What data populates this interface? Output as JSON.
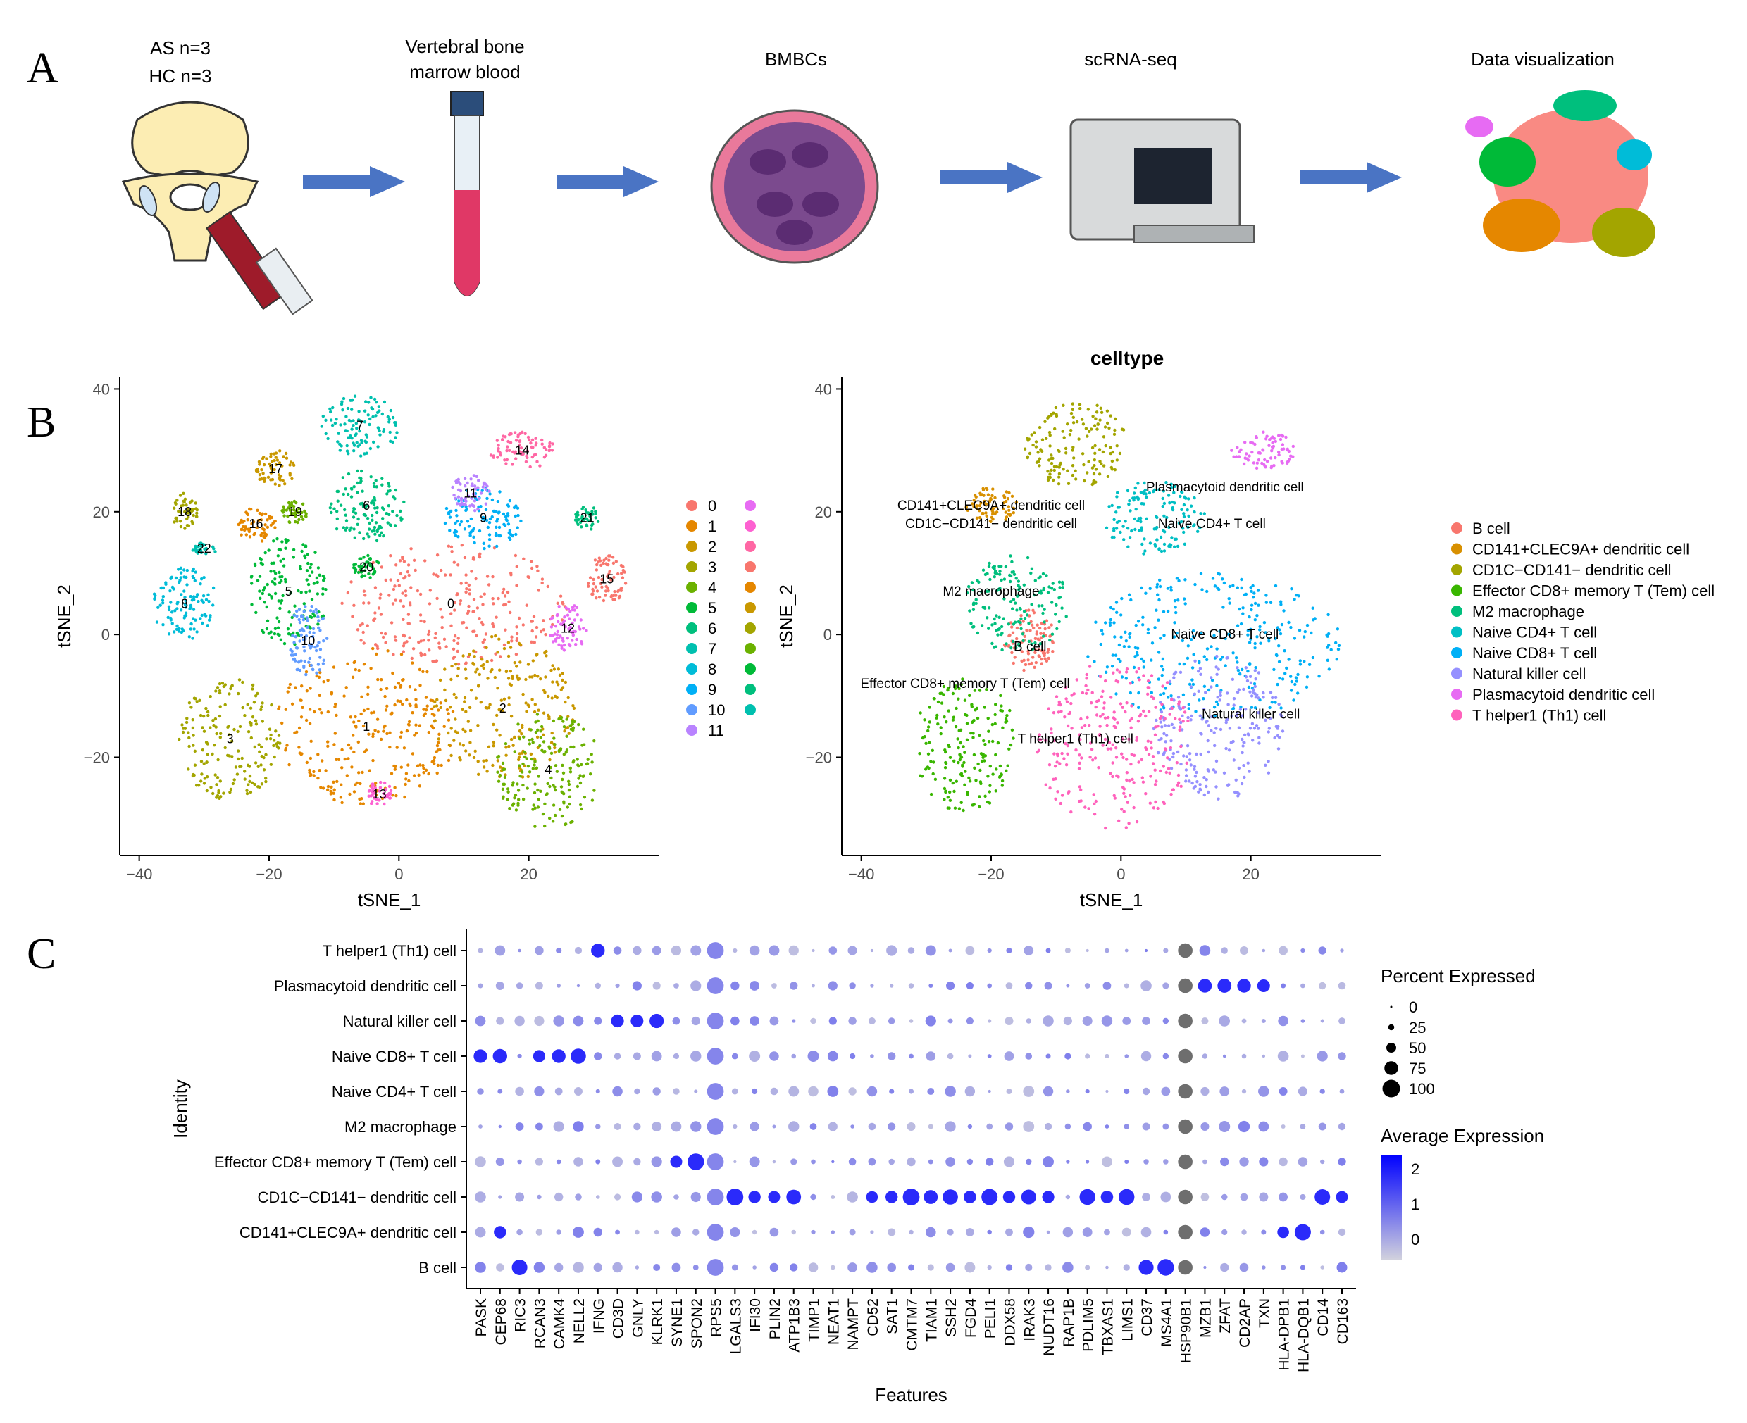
{
  "panels": {
    "A": "A",
    "B": "B",
    "C": "C"
  },
  "workflow": {
    "subjects": [
      "AS n=3",
      "HC n=3"
    ],
    "stages": [
      {
        "label_lines": [
          "Vertebral bone",
          "marrow blood"
        ]
      },
      {
        "label_lines": [
          "BMBCs"
        ]
      },
      {
        "label_lines": [
          "scRNA-seq"
        ]
      },
      {
        "label_lines": [
          "Data visualization"
        ]
      }
    ]
  },
  "colors": {
    "cluster_palette": [
      "#F8766D",
      "#E58700",
      "#C99800",
      "#A3A500",
      "#6BB100",
      "#00BA38",
      "#00BF7D",
      "#00C0AF",
      "#00BCD8",
      "#00B0F6",
      "#619CFF",
      "#B983FF",
      "#E76BF3",
      "#FD61D1",
      "#FF67A4",
      "#F8766D",
      "#E58700",
      "#C99800",
      "#A3A500",
      "#6BB100",
      "#00BA38",
      "#00BF7D",
      "#00C0AF"
    ],
    "dot_low": "#D3D3DD",
    "dot_high": "#0000FF",
    "dot_grey": "#6E6E6E",
    "arrow": "#4A74C4"
  },
  "chart_data": [
    {
      "type": "scatter",
      "title": "",
      "xlabel": "tSNE_1",
      "ylabel": "tSNE_2",
      "xlim": [
        -43,
        40
      ],
      "ylim": [
        -36,
        42
      ],
      "xticks": [
        -40,
        -20,
        0,
        20
      ],
      "yticks": [
        -20,
        0,
        20,
        40
      ],
      "legend_placement": "right",
      "legend_col1": [
        "0",
        "1",
        "2",
        "3",
        "4",
        "5",
        "6",
        "7",
        "8",
        "9",
        "10",
        "11"
      ],
      "legend_col2_count": 11,
      "clusters": [
        {
          "id": "0",
          "cx": 8,
          "cy": 5,
          "rx": 18,
          "ry": 10,
          "color_index": 0
        },
        {
          "id": "1",
          "cx": -5,
          "cy": -15,
          "rx": 14,
          "ry": 13,
          "color_index": 1
        },
        {
          "id": "2",
          "cx": 16,
          "cy": -12,
          "rx": 11,
          "ry": 12,
          "color_index": 2
        },
        {
          "id": "3",
          "cx": -26,
          "cy": -17,
          "rx": 8,
          "ry": 10,
          "color_index": 3
        },
        {
          "id": "4",
          "cx": 23,
          "cy": -22,
          "rx": 8,
          "ry": 10,
          "color_index": 4
        },
        {
          "id": "5",
          "cx": -17,
          "cy": 7,
          "rx": 6,
          "ry": 9,
          "color_index": 5
        },
        {
          "id": "6",
          "cx": -5,
          "cy": 21,
          "rx": 6,
          "ry": 6,
          "color_index": 6
        },
        {
          "id": "7",
          "cx": -6,
          "cy": 34,
          "rx": 6,
          "ry": 5,
          "color_index": 7
        },
        {
          "id": "8",
          "cx": -33,
          "cy": 5,
          "rx": 5,
          "ry": 6,
          "color_index": 8
        },
        {
          "id": "9",
          "cx": 13,
          "cy": 19,
          "rx": 6,
          "ry": 5,
          "color_index": 9
        },
        {
          "id": "10",
          "cx": -14,
          "cy": -1,
          "rx": 3,
          "ry": 6,
          "color_index": 10
        },
        {
          "id": "11",
          "cx": 11,
          "cy": 23,
          "rx": 3,
          "ry": 3,
          "color_index": 11
        },
        {
          "id": "12",
          "cx": 26,
          "cy": 1,
          "rx": 3,
          "ry": 4,
          "color_index": 12
        },
        {
          "id": "13",
          "cx": -3,
          "cy": -26,
          "rx": 2,
          "ry": 2,
          "color_index": 13
        },
        {
          "id": "14",
          "cx": 19,
          "cy": 30,
          "rx": 5,
          "ry": 3,
          "color_index": 14
        },
        {
          "id": "15",
          "cx": 32,
          "cy": 9,
          "rx": 3,
          "ry": 4,
          "color_index": 15
        },
        {
          "id": "16",
          "cx": -22,
          "cy": 18,
          "rx": 3,
          "ry": 3,
          "color_index": 16
        },
        {
          "id": "17",
          "cx": -19,
          "cy": 27,
          "rx": 3,
          "ry": 3,
          "color_index": 17
        },
        {
          "id": "18",
          "cx": -33,
          "cy": 20,
          "rx": 2,
          "ry": 3,
          "color_index": 18
        },
        {
          "id": "19",
          "cx": -16,
          "cy": 20,
          "rx": 2,
          "ry": 2,
          "color_index": 19
        },
        {
          "id": "20",
          "cx": -5,
          "cy": 11,
          "rx": 2,
          "ry": 2,
          "color_index": 20
        },
        {
          "id": "21",
          "cx": 29,
          "cy": 19,
          "rx": 2,
          "ry": 2,
          "color_index": 21
        },
        {
          "id": "22",
          "cx": -30,
          "cy": 14,
          "rx": 2,
          "ry": 1,
          "color_index": 22
        }
      ]
    },
    {
      "type": "scatter",
      "title": "celltype",
      "xlabel": "tSNE_1",
      "ylabel": "tSNE_2",
      "xlim": [
        -43,
        40
      ],
      "ylim": [
        -36,
        42
      ],
      "xticks": [
        -40,
        -20,
        0,
        20
      ],
      "yticks": [
        -20,
        0,
        20,
        40
      ],
      "legend_placement": "right",
      "cell_types": [
        {
          "name": "B cell",
          "color": "#F8766D",
          "cx": -14,
          "cy": -1,
          "rx": 4,
          "ry": 5,
          "label_x": -14,
          "label_y": -2
        },
        {
          "name": "CD141+CLEC9A+ dendritic cell",
          "color": "#D89000",
          "cx": -20,
          "cy": 21,
          "rx": 4,
          "ry": 3,
          "label_x": -20,
          "label_y": 21
        },
        {
          "name": "CD1C−CD141− dendritic cell",
          "color": "#A3A500",
          "cx": -7,
          "cy": 31,
          "rx": 8,
          "ry": 7,
          "label_x": -20,
          "label_y": 18
        },
        {
          "name": "Effector CD8+ memory T (Tem) cell",
          "color": "#39B600",
          "cx": -24,
          "cy": -18,
          "rx": 8,
          "ry": 11,
          "label_x": -24,
          "label_y": -8
        },
        {
          "name": "M2 macrophage",
          "color": "#00BF7D",
          "cx": -16,
          "cy": 5,
          "rx": 8,
          "ry": 8,
          "label_x": -20,
          "label_y": 7
        },
        {
          "name": "Naive CD4+ T cell",
          "color": "#00BFC4",
          "cx": 5,
          "cy": 19,
          "rx": 8,
          "ry": 6,
          "label_x": 14,
          "label_y": 18
        },
        {
          "name": "Naive CD8+ T cell",
          "color": "#00B0F6",
          "cx": 14,
          "cy": -2,
          "rx": 20,
          "ry": 12,
          "label_x": 16,
          "label_y": 0
        },
        {
          "name": "Natural killer cell",
          "color": "#9590FF",
          "cx": 15,
          "cy": -15,
          "rx": 10,
          "ry": 12,
          "label_x": 20,
          "label_y": -13
        },
        {
          "name": "Plasmacytoid dendritic cell",
          "color": "#E76BF3",
          "cx": 22,
          "cy": 30,
          "rx": 5,
          "ry": 3,
          "label_x": 16,
          "label_y": 24
        },
        {
          "name": "T helper1 (Th1) cell",
          "color": "#FF62BC",
          "cx": -1,
          "cy": -18,
          "rx": 12,
          "ry": 14,
          "label_x": -7,
          "label_y": -17
        }
      ]
    },
    {
      "type": "scatter",
      "title": "",
      "xlabel": "Features",
      "ylabel": "Identity",
      "identities": [
        "T helper1 (Th1) cell",
        "Plasmacytoid dendritic cell",
        "Natural killer cell",
        "Naive CD8+ T cell",
        "Naive CD4+ T cell",
        "M2 macrophage",
        "Effector CD8+ memory T (Tem) cell",
        "CD1C−CD141− dendritic cell",
        "CD141+CLEC9A+ dendritic cell",
        "B cell"
      ],
      "features": [
        "PASK",
        "CEP68",
        "RIC3",
        "RCAN3",
        "CAMK4",
        "NELL2",
        "IFNG",
        "CD3D",
        "GNLY",
        "KLRK1",
        "SYNE1",
        "SPON2",
        "RPS5",
        "LGALS3",
        "IFI30",
        "PLIN2",
        "ATP1B3",
        "TIMP1",
        "NEAT1",
        "NAMPT",
        "CD52",
        "SAT1",
        "CMTM7",
        "TIAM1",
        "SSH2",
        "FGD4",
        "PELI1",
        "DDX58",
        "IRAK3",
        "NUDT16",
        "RAP1B",
        "PDLIM5",
        "TBXAS1",
        "LIMS1",
        "CD37",
        "MS4A1",
        "HSP90B1",
        "MZB1",
        "ZFAT",
        "CD2AP",
        "TXN",
        "HLA-DPB1",
        "HLA-DQB1",
        "CD14",
        "CD163"
      ],
      "highlights": [
        {
          "identity": "Naive CD8+ T cell",
          "features": [
            "PASK",
            "CEP68",
            "RCAN3",
            "CAMK4",
            "NELL2"
          ],
          "avg": 2
        },
        {
          "identity": "Natural killer cell",
          "features": [
            "CD3D",
            "GNLY",
            "KLRK1"
          ],
          "avg": 2
        },
        {
          "identity": "Effector CD8+ memory T (Tem) cell",
          "features": [
            "SYNE1",
            "SPON2"
          ],
          "avg": 2
        },
        {
          "identity": "CD1C−CD141− dendritic cell",
          "features": [
            "LGALS3",
            "IFI30",
            "PLIN2",
            "ATP1B3",
            "CD52",
            "SAT1",
            "CMTM7",
            "TIAM1",
            "SSH2",
            "FGD4",
            "PELI1",
            "DDX58",
            "IRAK3",
            "NUDT16",
            "PDLIM5",
            "TBXAS1",
            "LIMS1",
            "CD14",
            "CD163"
          ],
          "avg": 2
        },
        {
          "identity": "CD141+CLEC9A+ dendritic cell",
          "features": [
            "CEP68",
            "HLA-DPB1",
            "HLA-DQB1"
          ],
          "avg": 2
        },
        {
          "identity": "B cell",
          "features": [
            "RIC3",
            "CD37",
            "MS4A1"
          ],
          "avg": 2
        },
        {
          "identity": "Plasmacytoid dendritic cell",
          "features": [
            "MZB1",
            "ZFAT",
            "CD2AP",
            "TXN"
          ],
          "avg": 2
        },
        {
          "identity": "T helper1 (Th1) cell",
          "features": [
            "IFNG"
          ],
          "avg": 2
        }
      ],
      "size_legend": {
        "title": "Percent Expressed",
        "labels": [
          "0",
          "25",
          "50",
          "75",
          "100"
        ]
      },
      "color_legend": {
        "title": "Average Expression",
        "labels": [
          "2",
          "1",
          "0"
        ],
        "range": [
          -0.6,
          2.4
        ]
      }
    }
  ]
}
